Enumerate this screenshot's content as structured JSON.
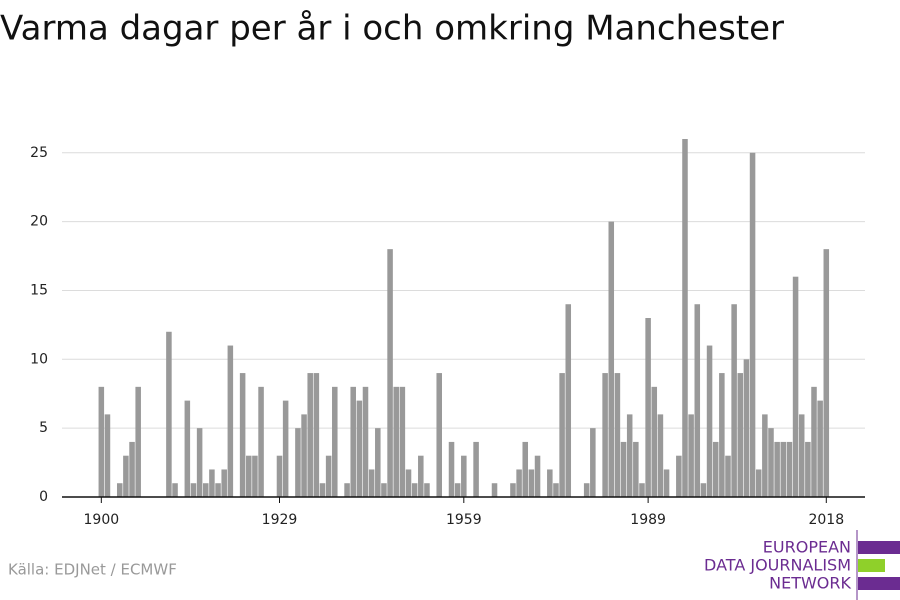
{
  "chart_data": {
    "type": "bar",
    "title": "Varma dagar per år i och omkring Manchester",
    "source": "Källa: EDJNet / ECMWF",
    "logo": [
      "EUROPEAN",
      "DATA JOURNALISM",
      "NETWORK"
    ],
    "x": [
      1900,
      1901,
      1902,
      1903,
      1904,
      1905,
      1906,
      1907,
      1908,
      1909,
      1910,
      1911,
      1912,
      1913,
      1914,
      1915,
      1916,
      1917,
      1918,
      1919,
      1920,
      1921,
      1922,
      1923,
      1924,
      1925,
      1926,
      1927,
      1928,
      1929,
      1930,
      1931,
      1932,
      1933,
      1934,
      1935,
      1936,
      1937,
      1938,
      1939,
      1940,
      1941,
      1942,
      1943,
      1944,
      1945,
      1946,
      1947,
      1948,
      1949,
      1950,
      1951,
      1952,
      1953,
      1954,
      1955,
      1956,
      1957,
      1958,
      1959,
      1960,
      1961,
      1962,
      1963,
      1964,
      1965,
      1966,
      1967,
      1968,
      1969,
      1970,
      1971,
      1972,
      1973,
      1974,
      1975,
      1976,
      1977,
      1978,
      1979,
      1980,
      1981,
      1982,
      1983,
      1984,
      1985,
      1986,
      1987,
      1988,
      1989,
      1990,
      1991,
      1992,
      1993,
      1994,
      1995,
      1996,
      1997,
      1998,
      1999,
      2000,
      2001,
      2002,
      2003,
      2004,
      2005,
      2006,
      2007,
      2008,
      2009,
      2010,
      2011,
      2012,
      2013,
      2014,
      2015,
      2016,
      2017,
      2018
    ],
    "values": [
      8,
      6,
      0,
      1,
      3,
      4,
      8,
      0,
      0,
      0,
      0,
      12,
      1,
      0,
      7,
      1,
      5,
      1,
      2,
      1,
      2,
      11,
      0,
      9,
      3,
      3,
      8,
      0,
      0,
      3,
      7,
      0,
      5,
      6,
      9,
      9,
      1,
      3,
      8,
      0,
      1,
      8,
      7,
      8,
      2,
      5,
      1,
      18,
      8,
      8,
      2,
      1,
      3,
      1,
      0,
      9,
      0,
      4,
      1,
      3,
      0,
      4,
      0,
      0,
      1,
      0,
      0,
      1,
      2,
      4,
      2,
      3,
      0,
      2,
      1,
      9,
      14,
      0,
      0,
      1,
      5,
      0,
      9,
      20,
      9,
      4,
      6,
      4,
      1,
      13,
      8,
      6,
      2,
      0,
      3,
      26,
      6,
      14,
      1,
      11,
      4,
      9,
      3,
      14,
      9,
      10,
      25,
      2,
      6,
      5,
      4,
      4,
      4,
      16,
      6,
      4,
      8,
      7,
      18
    ],
    "color": "#999999",
    "xlim": [
      1893.6,
      2024.3
    ],
    "xticks": [
      1900,
      1929,
      1959,
      1989,
      2018
    ],
    "ylim": [
      0,
      26
    ],
    "yticks": [
      0,
      5,
      10,
      15,
      20,
      25
    ],
    "grid": true
  }
}
